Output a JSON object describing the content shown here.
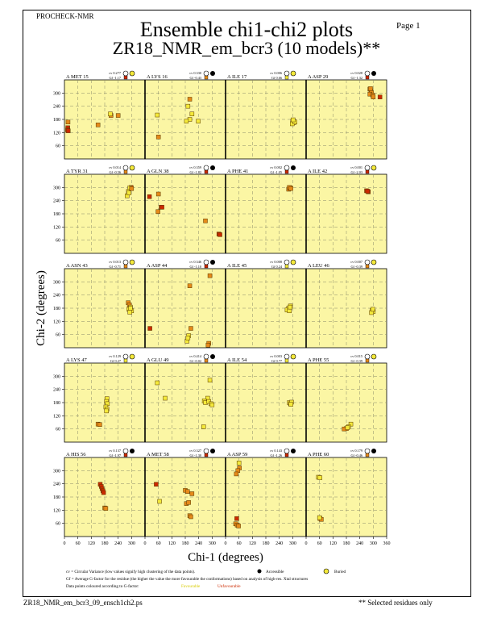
{
  "header": {
    "program": "PROCHECK-NMR",
    "page": "Page  1",
    "title": "Ensemble chi1-chi2 plots",
    "subtitle": "ZR18_NMR_em_bcr3 (10 models)**"
  },
  "footer": {
    "filename": "ZR18_NMR_em_bcr3_09_ensch1ch2.ps",
    "selected_note": "** Selected residues only"
  },
  "legend": {
    "cv_text": "cv = Circular Variance (low values signify high clustering of the data points).",
    "accessible": "Accessible",
    "buried": "Buried",
    "gf_text": "Gf = Average G-factor for the residue (the higher the value the more favourable the conformations) based on analysis of high-res. Xtal structures",
    "colour_text": "Data points coloured according to G-factor:",
    "favourable": "Favourable",
    "unfavourable": "Unfavourable"
  },
  "colors": {
    "panel_bg": "#fbf6a4",
    "favourable": "#f4e93a",
    "unfavourable": "#cc2a00",
    "mid": "#e58a1a"
  },
  "chart_data": {
    "type": "scatter",
    "xlabel": "Chi-1 (degrees)",
    "ylabel": "Chi-2 (degrees)",
    "xlim": [
      0,
      360
    ],
    "ylim": [
      0,
      360
    ],
    "xticks": [
      0,
      60,
      120,
      180,
      240,
      300,
      360
    ],
    "yticks": [
      60,
      120,
      180,
      240,
      300
    ],
    "panels": [
      {
        "res": "A MET 15",
        "cv": "cv 0.277",
        "gf": "Gf -1.17",
        "acc": "buried",
        "pts": [
          [
            15,
            142,
            "r"
          ],
          [
            14,
            132,
            "r"
          ],
          [
            17,
            128,
            "r"
          ],
          [
            16,
            168,
            "o"
          ],
          [
            150,
            155,
            "o"
          ],
          [
            208,
            198,
            "o"
          ],
          [
            205,
            205,
            "y"
          ],
          [
            240,
            198,
            "o"
          ]
        ]
      },
      {
        "res": "A LYS 16",
        "cv": "cv 0.330",
        "gf": "Gf -0.43",
        "acc": "accessible",
        "pts": [
          [
            200,
            272,
            "o"
          ],
          [
            192,
            240,
            "y"
          ],
          [
            210,
            205,
            "y"
          ],
          [
            200,
            180,
            "y"
          ],
          [
            185,
            172,
            "y"
          ],
          [
            238,
            172,
            "y"
          ],
          [
            55,
            200,
            "y"
          ],
          [
            60,
            100,
            "o"
          ]
        ]
      },
      {
        "res": "A ILE 17",
        "cv": "cv 0.006",
        "gf": "Gf 0.66",
        "acc": "buried",
        "pts": [
          [
            300,
            172,
            "y"
          ],
          [
            305,
            165,
            "y"
          ],
          [
            298,
            160,
            "y"
          ],
          [
            310,
            168,
            "y"
          ],
          [
            302,
            178,
            "y"
          ]
        ]
      },
      {
        "res": "A ASP 29",
        "cv": "cv 0.028",
        "gf": "Gf -1.32",
        "acc": "accessible",
        "pts": [
          [
            285,
            318,
            "o"
          ],
          [
            290,
            310,
            "o"
          ],
          [
            292,
            302,
            "o"
          ],
          [
            285,
            295,
            "o"
          ],
          [
            298,
            290,
            "o"
          ],
          [
            300,
            282,
            "o"
          ],
          [
            330,
            282,
            "r"
          ],
          [
            288,
            320,
            "o"
          ]
        ]
      },
      {
        "res": "A TYR 31",
        "cv": "cv 0.014",
        "gf": "Gf -0.56",
        "acc": "buried",
        "pts": [
          [
            298,
            300,
            "r"
          ],
          [
            292,
            298,
            "y"
          ],
          [
            286,
            282,
            "y"
          ],
          [
            280,
            262,
            "y"
          ],
          [
            288,
            275,
            "y"
          ],
          [
            300,
            295,
            "o"
          ]
        ]
      },
      {
        "res": "A GLN 38",
        "cv": "cv 0.359",
        "gf": "Gf -1.82",
        "acc": "accessible",
        "pts": [
          [
            20,
            258,
            "r"
          ],
          [
            60,
            270,
            "o"
          ],
          [
            58,
            190,
            "o"
          ],
          [
            72,
            210,
            "r"
          ],
          [
            76,
            210,
            "r"
          ],
          [
            270,
            148,
            "o"
          ],
          [
            330,
            88,
            "r"
          ],
          [
            335,
            85,
            "r"
          ]
        ]
      },
      {
        "res": "A PHE 41",
        "cv": "cv 0.002",
        "gf": "Gf -1.05",
        "acc": "accessible",
        "pts": [
          [
            282,
            292,
            "o"
          ],
          [
            290,
            298,
            "o"
          ],
          [
            285,
            300,
            "o"
          ],
          [
            292,
            295,
            "o"
          ]
        ]
      },
      {
        "res": "A ILE 42",
        "cv": "cv 0.001",
        "gf": "Gf -2.03",
        "acc": "buried",
        "pts": [
          [
            270,
            285,
            "r"
          ],
          [
            278,
            280,
            "r"
          ],
          [
            275,
            283,
            "r"
          ]
        ]
      },
      {
        "res": "A ASN 43",
        "cv": "cv 0.013",
        "gf": "Gf -0.71",
        "acc": "buried",
        "pts": [
          [
            285,
            205,
            "o"
          ],
          [
            290,
            195,
            "o"
          ],
          [
            295,
            185,
            "y"
          ],
          [
            288,
            175,
            "y"
          ],
          [
            300,
            168,
            "y"
          ],
          [
            292,
            162,
            "y"
          ],
          [
            295,
            180,
            "y"
          ]
        ]
      },
      {
        "res": "A ASP 44",
        "cv": "cv 0.346",
        "gf": "Gf -1.10",
        "acc": "accessible",
        "pts": [
          [
            290,
            328,
            "o"
          ],
          [
            200,
            282,
            "o"
          ],
          [
            22,
            88,
            "r"
          ],
          [
            205,
            88,
            "o"
          ],
          [
            195,
            55,
            "y"
          ],
          [
            188,
            30,
            "y"
          ],
          [
            192,
            45,
            "y"
          ],
          [
            285,
            20,
            "o"
          ],
          [
            282,
            12,
            "o"
          ]
        ]
      },
      {
        "res": "A ILE 45",
        "cv": "cv 0.008",
        "gf": "Gf 0.24",
        "acc": "buried",
        "pts": [
          [
            290,
            190,
            "y"
          ],
          [
            282,
            180,
            "y"
          ],
          [
            275,
            172,
            "y"
          ],
          [
            285,
            168,
            "y"
          ],
          [
            288,
            185,
            "y"
          ]
        ]
      },
      {
        "res": "A LEU 46",
        "cv": "cv 0.007",
        "gf": "Gf -0.39",
        "acc": "buried",
        "pts": [
          [
            295,
            170,
            "y"
          ],
          [
            300,
            165,
            "y"
          ],
          [
            292,
            160,
            "y"
          ],
          [
            298,
            175,
            "y"
          ]
        ]
      },
      {
        "res": "A LYS 47",
        "cv": "cv 0.129",
        "gf": "Gf 0.27",
        "acc": "buried",
        "pts": [
          [
            190,
            198,
            "y"
          ],
          [
            188,
            185,
            "y"
          ],
          [
            192,
            175,
            "y"
          ],
          [
            185,
            160,
            "y"
          ],
          [
            190,
            150,
            "y"
          ],
          [
            188,
            142,
            "y"
          ],
          [
            150,
            82,
            "o"
          ],
          [
            158,
            80,
            "o"
          ]
        ]
      },
      {
        "res": "A GLU 49",
        "cv": "cv 0.414",
        "gf": "Gf -0.02",
        "acc": "accessible",
        "pts": [
          [
            290,
            282,
            "y"
          ],
          [
            55,
            270,
            "y"
          ],
          [
            90,
            200,
            "y"
          ],
          [
            280,
            200,
            "y"
          ],
          [
            265,
            188,
            "y"
          ],
          [
            270,
            180,
            "y"
          ],
          [
            285,
            185,
            "y"
          ],
          [
            295,
            175,
            "y"
          ],
          [
            300,
            170,
            "y"
          ],
          [
            262,
            70,
            "y"
          ]
        ]
      },
      {
        "res": "A ILE 54",
        "cv": "cv 0.003",
        "gf": "Gf 0.77",
        "acc": "buried",
        "pts": [
          [
            285,
            180,
            "y"
          ],
          [
            290,
            175,
            "y"
          ],
          [
            295,
            182,
            "y"
          ],
          [
            292,
            172,
            "y"
          ]
        ]
      },
      {
        "res": "A PHE 55",
        "cv": "cv 0.015",
        "gf": "Gf -0.39",
        "acc": "buried",
        "pts": [
          [
            200,
            82,
            "y"
          ],
          [
            190,
            70,
            "y"
          ],
          [
            180,
            62,
            "o"
          ],
          [
            170,
            60,
            "o"
          ],
          [
            185,
            66,
            "y"
          ]
        ]
      },
      {
        "res": "A HIS 56",
        "cv": "cv 0.137",
        "gf": "Gf -1.97",
        "acc": "accessible",
        "pts": [
          [
            160,
            238,
            "r"
          ],
          [
            165,
            228,
            "r"
          ],
          [
            168,
            218,
            "r"
          ],
          [
            172,
            208,
            "r"
          ],
          [
            180,
            130,
            "o"
          ],
          [
            185,
            128,
            "o"
          ],
          [
            175,
            200,
            "r"
          ]
        ]
      },
      {
        "res": "A MET 58",
        "cv": "cv 0.327",
        "gf": "Gf -1.30",
        "acc": "accessible",
        "pts": [
          [
            50,
            238,
            "r"
          ],
          [
            180,
            210,
            "o"
          ],
          [
            190,
            205,
            "o"
          ],
          [
            210,
            195,
            "o"
          ],
          [
            185,
            150,
            "o"
          ],
          [
            195,
            155,
            "o"
          ],
          [
            65,
            160,
            "y"
          ],
          [
            200,
            95,
            "o"
          ],
          [
            205,
            90,
            "o"
          ]
        ]
      },
      {
        "res": "A ASP 59",
        "cv": "cv 0.143",
        "gf": "Gf -1.26",
        "acc": "accessible",
        "pts": [
          [
            60,
            335,
            "y"
          ],
          [
            62,
            312,
            "o"
          ],
          [
            55,
            300,
            "o"
          ],
          [
            48,
            285,
            "o"
          ],
          [
            50,
            82,
            "r"
          ],
          [
            45,
            58,
            "o"
          ],
          [
            52,
            52,
            "o"
          ],
          [
            58,
            48,
            "o"
          ]
        ]
      },
      {
        "res": "A PHE 60",
        "cv": "cv 0.179",
        "gf": "Gf -0.46",
        "acc": "accessible",
        "pts": [
          [
            55,
            270,
            "y"
          ],
          [
            62,
            268,
            "y"
          ],
          [
            62,
            82,
            "o"
          ],
          [
            68,
            78,
            "o"
          ],
          [
            60,
            86,
            "y"
          ]
        ]
      }
    ]
  }
}
